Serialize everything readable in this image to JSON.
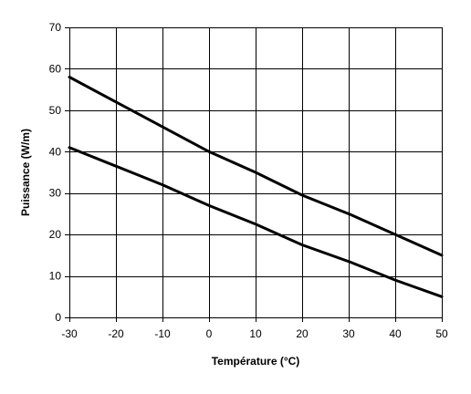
{
  "chart_data": {
    "type": "line",
    "title": "",
    "xlabel": "Température (°C)",
    "ylabel": "Puissance (W/m)",
    "xlim": [
      -30,
      50
    ],
    "ylim": [
      0,
      70
    ],
    "x_ticks": [
      -30,
      -20,
      -10,
      0,
      10,
      20,
      30,
      40,
      50
    ],
    "y_ticks": [
      0,
      10,
      20,
      30,
      40,
      50,
      60,
      70
    ],
    "grid": true,
    "legend": "none",
    "line_color": "#000000",
    "series": [
      {
        "x": [
          -30,
          -20,
          -10,
          0,
          10,
          20,
          30,
          40,
          50
        ],
        "values": [
          58,
          52,
          46,
          40,
          35,
          29.5,
          25,
          20,
          15
        ]
      },
      {
        "x": [
          -30,
          -20,
          -10,
          0,
          10,
          20,
          30,
          40,
          50
        ],
        "values": [
          41,
          36.5,
          32,
          27,
          22.5,
          17.5,
          13.5,
          9,
          5
        ]
      }
    ]
  }
}
